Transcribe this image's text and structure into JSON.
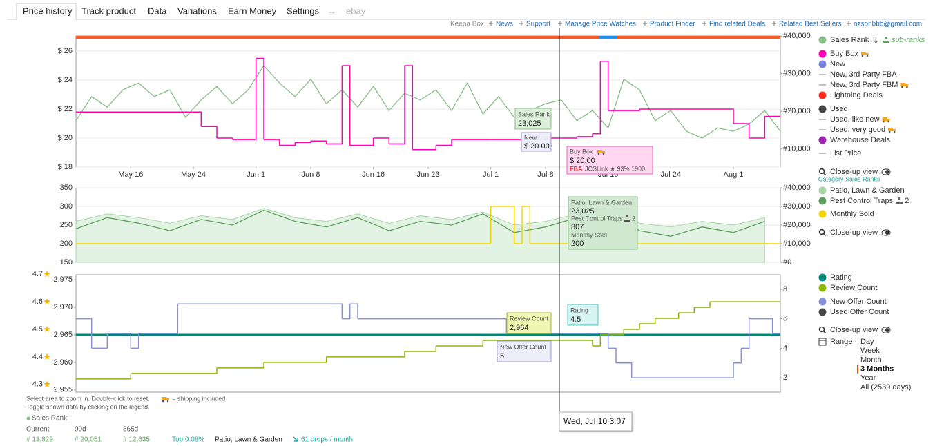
{
  "tabs": [
    "Price history",
    "Track product",
    "Data",
    "Variations",
    "Earn Money",
    "Settings",
    "→",
    "ebay"
  ],
  "links": [
    "Keepa Box",
    "News",
    "Support",
    "Manage Price Watches",
    "Product Finder",
    "Find related Deals",
    "Related Best Sellers",
    "ozsonbbb@gmail.com"
  ],
  "chart_data": [
    {
      "type": "line",
      "grid": true,
      "xlim": [
        "May 9",
        "Aug 7"
      ],
      "xticks": [
        "May 16",
        "May 24",
        "Jun 1",
        "Jun 8",
        "Jun 16",
        "Jun 23",
        "Jul 1",
        "Jul 8",
        "Jul 16",
        "Jul 24",
        "Aug 1"
      ],
      "ylim": [
        18,
        27.05
      ],
      "yticks": [
        {
          "value": 18,
          "label": "$ 18"
        },
        {
          "value": 20,
          "label": "$ 20"
        },
        {
          "value": 22,
          "label": "$ 22"
        },
        {
          "value": 24,
          "label": "$ 24"
        },
        {
          "value": 26,
          "label": "$ 26"
        }
      ],
      "y2lim": [
        5200,
        40000
      ],
      "y2ticks": [
        {
          "value": 10000,
          "label": "#10,000"
        },
        {
          "value": 20000,
          "label": "#20,000"
        },
        {
          "value": 30000,
          "label": "#30,000"
        },
        {
          "value": 40000,
          "label": "#40,000"
        }
      ],
      "series": [
        {
          "name": "Sales Rank",
          "color": "#86bd86",
          "axis": "y2",
          "x": [
            "May 9",
            "May 11",
            "May 13",
            "May 15",
            "May 17",
            "May 19",
            "May 21",
            "May 23",
            "May 25",
            "May 27",
            "May 29",
            "May 31",
            "Jun 2",
            "Jun 4",
            "Jun 6",
            "Jun 8",
            "Jun 10",
            "Jun 12",
            "Jun 14",
            "Jun 16",
            "Jun 18",
            "Jun 20",
            "Jun 22",
            "Jun 24",
            "Jun 26",
            "Jun 28",
            "Jun 30",
            "Jul 2",
            "Jul 4",
            "Jul 6",
            "Jul 8",
            "Jul 10",
            "Jul 12",
            "Jul 14",
            "Jul 16",
            "Jul 18",
            "Jul 20",
            "Jul 22",
            "Jul 24",
            "Jul 26",
            "Jul 28",
            "Jul 30",
            "Aug 1",
            "Aug 3",
            "Aug 5",
            "Aug 7"
          ],
          "values": [
            17500,
            23900,
            21100,
            25700,
            27500,
            23900,
            25700,
            18400,
            23000,
            26600,
            22000,
            25700,
            32100,
            27500,
            23900,
            28500,
            22000,
            25700,
            21100,
            26600,
            20200,
            24800,
            23000,
            25700,
            20200,
            27500,
            19300,
            23900,
            18400,
            20200,
            22000,
            23025,
            17500,
            20200,
            15600,
            28500,
            25700,
            17500,
            20200,
            14700,
            12900,
            15600,
            14700,
            16600,
            20200,
            14700
          ]
        },
        {
          "name": "Buy Box",
          "color": "#ff00b4",
          "interpolation": "step",
          "truck": true,
          "x": [
            "May 9",
            "May 25",
            "May 27",
            "May 29",
            "Jun 1",
            "Jun 2",
            "Jun 4",
            "Jun 6",
            "Jun 8",
            "Jun 10",
            "Jun 12",
            "Jun 13",
            "Jun 16",
            "Jun 18",
            "Jun 20",
            "Jun 21",
            "Jun 24",
            "Jun 26",
            "Jul 1",
            "Jul 6",
            "Jul 8",
            "Jul 12",
            "Jul 14",
            "Jul 15",
            "Jul 16",
            "Jul 20",
            "Aug 1",
            "Aug 3",
            "Aug 5",
            "Aug 7"
          ],
          "values": [
            21.8,
            20.8,
            20.0,
            19.9,
            25.5,
            19.9,
            19.5,
            19.7,
            19.8,
            19.6,
            25.0,
            19.5,
            20.0,
            19.6,
            25.0,
            19.2,
            19.5,
            19.9,
            19.9,
            19.4,
            20.0,
            20.1,
            20.3,
            25.3,
            21.9,
            22.0,
            21.0,
            20.0,
            21.5,
            21.5
          ]
        }
      ],
      "subranks_label": "sub-ranks",
      "legend_extra": [
        {
          "label": "New",
          "color": "#7b83e0",
          "marker": "dot"
        },
        {
          "label": "New, 3rd Party FBA",
          "color": "#aaaaaa",
          "marker": "line"
        },
        {
          "label": "New, 3rd Party FBM",
          "color": "#aaaaaa",
          "marker": "line",
          "truck": true
        },
        {
          "label": "Lightning Deals",
          "color": "#ff2a1a",
          "marker": "dot"
        },
        {
          "label": "Used",
          "color": "#444444",
          "marker": "dot"
        },
        {
          "label": "Used, like new",
          "color": "#aaaaaa",
          "marker": "line",
          "truck": true
        },
        {
          "label": "Used, very good",
          "color": "#aaaaaa",
          "marker": "line",
          "truck": true
        },
        {
          "label": "Warehouse Deals",
          "color": "#9c27b0",
          "marker": "dot"
        },
        {
          "label": "List Price",
          "color": "#aaaaaa",
          "marker": "line"
        }
      ],
      "closeup_label": "Close-up view"
    },
    {
      "type": "line",
      "grid": true,
      "xlim": [
        "May 9",
        "Aug 7"
      ],
      "ylim": [
        150,
        350
      ],
      "yticks": [
        150,
        200,
        250,
        300,
        350
      ],
      "y2lim": [
        0,
        40000
      ],
      "y2ticks": [
        {
          "value": 0,
          "label": "#0"
        },
        {
          "value": 10000,
          "label": "#10,000"
        },
        {
          "value": 20000,
          "label": "#20,000"
        },
        {
          "value": 30000,
          "label": "#30,000"
        },
        {
          "value": 40000,
          "label": "#40,000"
        }
      ],
      "legend_header": "Category Sales Ranks",
      "series": [
        {
          "name": "Patio, Lawn & Garden",
          "color": "#a9d6a9",
          "fill_color": "#e3f3e3",
          "area": true,
          "axis": "y2",
          "x": [
            "May 9",
            "May 13",
            "May 17",
            "May 21",
            "May 25",
            "May 29",
            "Jun 2",
            "Jun 6",
            "Jun 10",
            "Jun 14",
            "Jun 18",
            "Jun 22",
            "Jun 26",
            "Jun 30",
            "Jul 4",
            "Jul 8",
            "Jul 12",
            "Jul 16",
            "Jul 20",
            "Jul 24",
            "Jul 28",
            "Aug 1",
            "Aug 5"
          ],
          "values": [
            22000,
            26000,
            24000,
            21000,
            25000,
            23000,
            29000,
            24000,
            22000,
            26000,
            21000,
            25000,
            23000,
            27000,
            20000,
            22000,
            26000,
            30000,
            21000,
            19000,
            22000,
            20000,
            24000
          ]
        },
        {
          "name": "Pest Control Traps",
          "color": "#5e9f5e",
          "badge": "2",
          "x": [
            "May 9",
            "May 13",
            "May 17",
            "May 21",
            "May 25",
            "May 29",
            "Jun 2",
            "Jun 6",
            "Jun 10",
            "Jun 14",
            "Jun 18",
            "Jun 22",
            "Jun 26",
            "Jun 30",
            "Jul 4",
            "Jul 8",
            "Jul 12",
            "Jul 16",
            "Jul 20",
            "Jul 24",
            "Jul 28",
            "Aug 1",
            "Aug 5"
          ],
          "values": [
            240,
            270,
            255,
            235,
            265,
            250,
            290,
            260,
            245,
            270,
            235,
            260,
            250,
            280,
            230,
            245,
            270,
            300,
            235,
            220,
            245,
            230,
            260
          ]
        },
        {
          "name": "Monthly Sold",
          "color": "#f2d600",
          "interpolation": "step",
          "x": [
            "May 9",
            "Jul 1",
            "Jul 4",
            "Jul 5",
            "Jul 6",
            "Aug 7"
          ],
          "values": [
            200,
            300,
            200,
            300,
            200,
            200
          ]
        }
      ],
      "closeup_label": "Close-up view"
    },
    {
      "type": "line",
      "grid": false,
      "xlim": [
        "May 9",
        "Aug 7"
      ],
      "ylim": [
        2954.6,
        2975.9
      ],
      "yticks": [
        {
          "value": 2955,
          "label": "2,955"
        },
        {
          "value": 2960,
          "label": "2,960"
        },
        {
          "value": 2965,
          "label": "2,965"
        },
        {
          "value": 2970,
          "label": "2,970"
        },
        {
          "value": 2975,
          "label": "2,975"
        }
      ],
      "y3lim": [
        4.292,
        4.718
      ],
      "y3ticks": [
        4.3,
        4.4,
        4.5,
        4.6,
        4.7
      ],
      "y2lim": [
        1.02,
        8.98
      ],
      "y2ticks": [
        2,
        4,
        6,
        8
      ],
      "series": [
        {
          "name": "Rating",
          "color": "#00897b",
          "axis": "y3",
          "width": 3,
          "x": [
            "May 9",
            "Aug 7"
          ],
          "values": [
            4.5,
            4.5
          ]
        },
        {
          "name": "Review Count",
          "color": "#8db600",
          "interpolation": "step",
          "x": [
            "May 9",
            "May 16",
            "May 27",
            "Jun 2",
            "Jun 10",
            "Jun 20",
            "Jun 24",
            "Jun 30",
            "Jul 14",
            "Jul 15",
            "Jul 18",
            "Jul 20",
            "Jul 22",
            "Jul 25",
            "Jul 27",
            "Jul 29",
            "Aug 7"
          ],
          "values": [
            2957,
            2958,
            2959,
            2960,
            2961,
            2962,
            2963,
            2964,
            2963,
            2965,
            2966,
            2967,
            2968,
            2969,
            2970,
            2971,
            2971
          ]
        },
        {
          "name": "New Offer Count",
          "color": "#8a8fdc",
          "interpolation": "step",
          "axis": "y2",
          "x": [
            "May 9",
            "May 11",
            "May 13",
            "May 16",
            "May 17",
            "May 22",
            "Jun 12",
            "Jun 13",
            "Jun 14",
            "Jul 3",
            "Jul 16",
            "Jul 17",
            "Jul 19",
            "Aug 1",
            "Aug 2",
            "Aug 3",
            "Aug 6",
            "Aug 7"
          ],
          "values": [
            6,
            4,
            5,
            4,
            5,
            7,
            6,
            7,
            6,
            5,
            4,
            3,
            2,
            3,
            4,
            6,
            5,
            5
          ]
        }
      ],
      "legend_extra": [
        {
          "label": "Used Offer Count",
          "color": "#444444",
          "marker": "dot"
        }
      ],
      "closeup_label": "Close-up view",
      "range": {
        "label": "Range",
        "options": [
          "Day",
          "Week",
          "Month",
          "3 Months",
          "Year",
          "All (2539 days)"
        ],
        "active": 3
      }
    }
  ],
  "tooltips": [
    {
      "lines": [
        "Sales Rank",
        "23,025"
      ]
    },
    {
      "lines": [
        "New",
        "$ 20.00"
      ]
    },
    {
      "lines": [
        "Buy Box",
        "$ 20.00",
        "FBA",
        "JCSLink ★ 93%  1900"
      ]
    },
    {
      "lines": [
        "Patio, Lawn & Garden",
        "23,025",
        "Pest Control Traps",
        "2",
        "807",
        "Monthly Sold",
        "200"
      ]
    },
    {
      "lines": [
        "Review Count",
        "2,964"
      ]
    },
    {
      "lines": [
        "Rating",
        "4.5"
      ]
    },
    {
      "lines": [
        "New Offer Count",
        "5"
      ]
    }
  ],
  "crosshair_label": "Wed, Jul 10 3:07",
  "footer": {
    "hint": "Select area to zoom in. Double-click to reset.",
    "shipping_note": "= shipping included",
    "toggle_hint": "Toggle shown data by clicking on the legend.",
    "stats_title": "Sales Rank",
    "columns": [
      "Current",
      "90d",
      "365d"
    ],
    "stats": [
      "# 13,829",
      "# 20,051",
      "# 12,635"
    ],
    "top": "Top 0.08%",
    "category": "Patio, Lawn & Garden",
    "drops": "61 drops / month"
  }
}
